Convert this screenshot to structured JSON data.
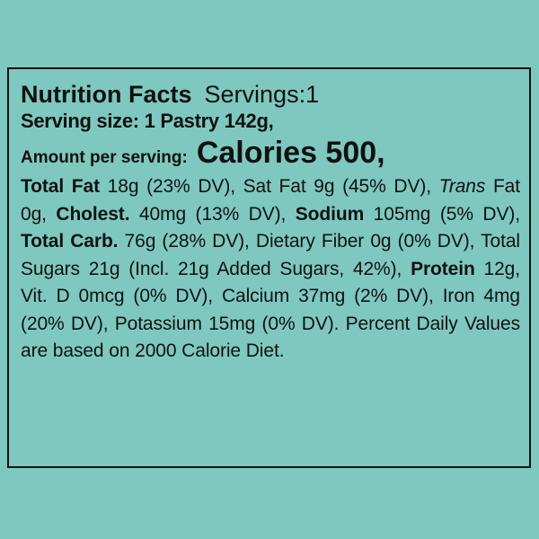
{
  "label": {
    "title": "Nutrition Facts",
    "servings": "Servings:1",
    "serving_size": "Serving size: 1 Pastry 142g,",
    "amount_label": "Amount per serving:",
    "calories": "Calories 500,",
    "total_fat_label": "Total Fat",
    "total_fat_text": " 18g (23% DV), Sat Fat 9g (45% DV), ",
    "trans_label": "Trans",
    "trans_text": " Fat 0g, ",
    "cholest_label": "Cholest.",
    "cholest_text": " 40mg (13% DV), ",
    "sodium_label": "Sodium",
    "sodium_text": " 105mg (5% DV), ",
    "carb_label": "Total Carb.",
    "carb_text": " 76g (28% DV), Dietary Fiber 0g (0% DV), Total Sugars 21g (Incl. 21g Added Sugars, 42%), ",
    "protein_label": "Protein",
    "protein_text": " 12g, Vit. D 0mcg (0% DV), Calcium 37mg (2% DV), Iron 4mg (20% DV), Potassium 15mg (0% DV). Percent Daily Values are based on 2000 Calorie Diet."
  },
  "colors": {
    "background": "#7ec8c0",
    "text": "#111111"
  }
}
